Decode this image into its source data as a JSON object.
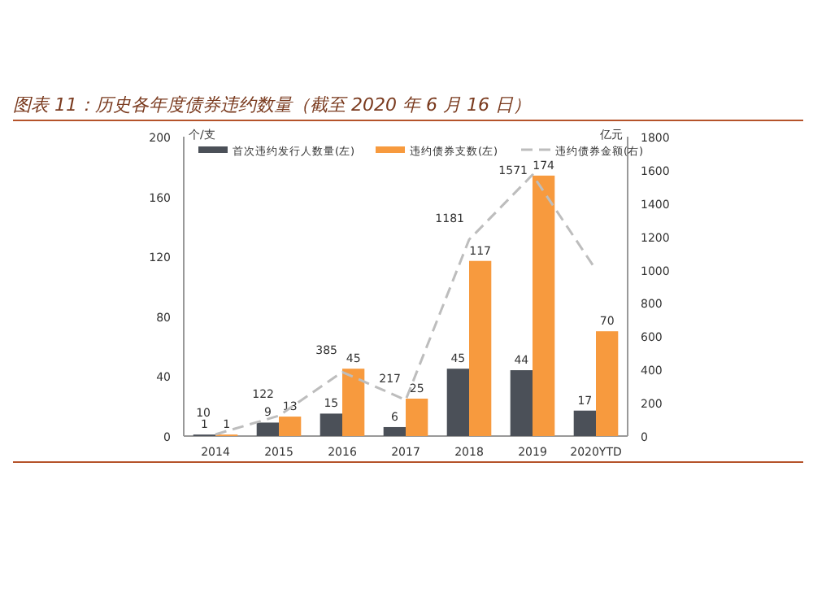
{
  "chart_data": {
    "type": "bar",
    "title": "图表 11：历史各年度债券违约数量（截至 2020 年 6 月 16 日）",
    "ylabel": "个/支",
    "y2label": "亿元",
    "categories": [
      "2014",
      "2015",
      "2016",
      "2017",
      "2018",
      "2019",
      "2020YTD"
    ],
    "series": [
      {
        "name": "首次违约发行人数量(左)",
        "color": "#4b5058",
        "values": [
          1,
          9,
          15,
          6,
          45,
          44,
          17
        ],
        "value_labels": [
          "1",
          "9",
          "15",
          "6",
          "45",
          "44",
          "17"
        ]
      },
      {
        "name": "违约债券支数(左)",
        "color": "#f79a3e",
        "values": [
          1,
          13,
          45,
          25,
          117,
          174,
          70
        ],
        "value_labels": [
          "1",
          "13",
          "45",
          "25",
          "117",
          "174",
          "70"
        ]
      },
      {
        "name": "违约债券金额(右)",
        "type": "line",
        "axis": "y2",
        "line_style": "dashed",
        "color": "#bdbdbd",
        "values": [
          10,
          122,
          385,
          217,
          1181,
          1571,
          1000
        ],
        "value_labels": [
          "10",
          "122",
          "385",
          "217",
          "1181",
          "1571",
          null
        ]
      }
    ],
    "ylim": [
      0,
      200
    ],
    "yticks": [
      0,
      40,
      80,
      120,
      160,
      200
    ],
    "y2lim": [
      0,
      1800
    ],
    "y2ticks": [
      0,
      200,
      400,
      600,
      800,
      1000,
      1200,
      1400,
      1600,
      1800
    ],
    "legend": "top",
    "marker": "none"
  }
}
